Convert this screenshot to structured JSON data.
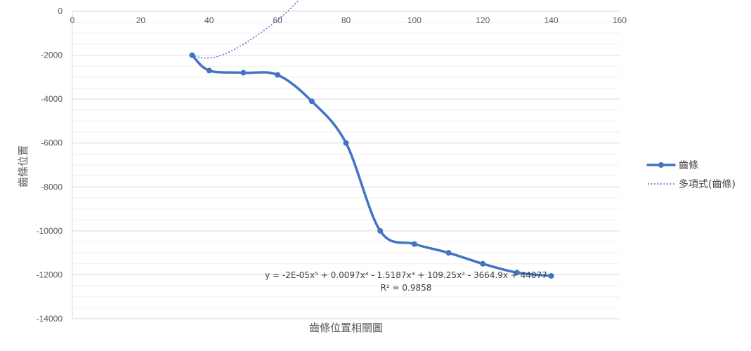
{
  "chart_data": {
    "type": "scatter",
    "title": "",
    "xlabel": "齒條位置相關圖",
    "ylabel": "齒條位置",
    "xlim": [
      0,
      160
    ],
    "ylim": [
      -14000,
      0
    ],
    "xticks": [
      0,
      20,
      40,
      60,
      80,
      100,
      120,
      140,
      160
    ],
    "xtick_labels": [
      "0",
      "20",
      "40",
      "60",
      "80",
      "100",
      "120",
      "140",
      "160"
    ],
    "yticks": [
      0,
      -2000,
      -4000,
      -6000,
      -8000,
      -10000,
      -12000,
      -14000
    ],
    "ytick_labels": [
      "0",
      "-2000",
      "-4000",
      "-6000",
      "-8000",
      "-10000",
      "-12000",
      "-14000"
    ],
    "grid": true,
    "legend_position": "right",
    "series": [
      {
        "name": "齒條",
        "style": "smooth-line-with-markers",
        "color": "#4472C4",
        "x": [
          35,
          40,
          50,
          60,
          70,
          80,
          90,
          100,
          110,
          120,
          130,
          140
        ],
        "y": [
          -2000,
          -2700,
          -2800,
          -2900,
          -4100,
          -6000,
          -10000,
          -10600,
          -11000,
          -11500,
          -11900,
          -12050
        ]
      },
      {
        "name": "多項式(齒條)",
        "style": "dotted-trendline",
        "color": "#4472C4",
        "x_range": [
          35,
          140
        ],
        "coefficients": [
          44077,
          -3664.9,
          109.25,
          -1.5187,
          0.0097,
          -2e-05
        ]
      }
    ],
    "annotations": [
      "y = -2E-05x⁵ + 0.0097x⁴ - 1.5187x³ + 109.25x² - 3664.9x + 44077",
      "R² = 0.9858"
    ]
  }
}
